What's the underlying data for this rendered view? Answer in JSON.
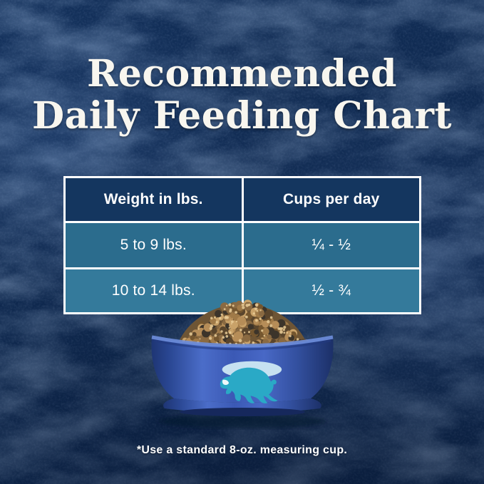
{
  "title": {
    "line1": "Recommended",
    "line2": "Daily Feeding Chart"
  },
  "table": {
    "columns": [
      "Weight in lbs.",
      "Cups per day"
    ],
    "rows": [
      {
        "weight": "5 to 9 lbs.",
        "cups": "¼ - ½"
      },
      {
        "weight": "10 to 14 lbs.",
        "cups": "½ - ¾"
      }
    ]
  },
  "footnote": "*Use a standard 8-oz. measuring cup.",
  "illustration": {
    "bowl": "blue dog bowl heaped with kibble",
    "logo_icon": "leaping-buffalo"
  },
  "colors": {
    "background": "#0f2c55",
    "table_header": "#14365f",
    "table_row_1": "#2b6c8d",
    "table_row_2": "#347a9b",
    "table_border": "#ffffff",
    "title_text": "#f8f6ef",
    "bowl_blue": "#3c5cb8",
    "buffalo_teal": "#2aa9c6",
    "kibble_tan": "#b68d58"
  },
  "chart_data": {
    "type": "table",
    "title": "Recommended Daily Feeding Chart",
    "columns": [
      "Weight in lbs.",
      "Cups per day"
    ],
    "rows": [
      [
        "5 to 9 lbs.",
        "¼ - ½"
      ],
      [
        "10 to 14 lbs.",
        "½ - ¾"
      ]
    ],
    "footnote": "*Use a standard 8-oz. measuring cup."
  }
}
